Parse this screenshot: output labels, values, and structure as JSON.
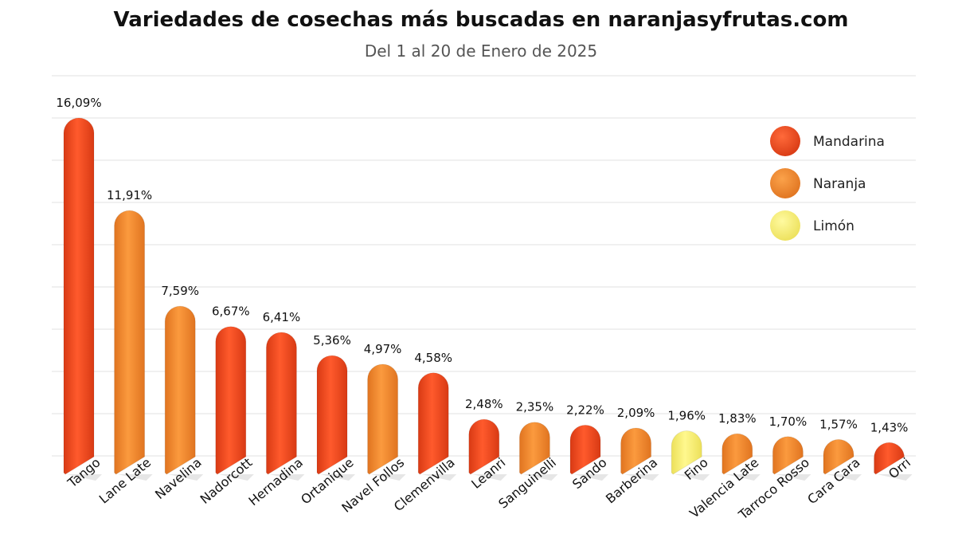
{
  "chart_data": {
    "type": "bar",
    "title": "Variedades de cosechas más buscadas en naranjasyfrutas.com",
    "subtitle": "Del 1 al 20 de Enero de 2025",
    "categories": [
      "Tango",
      "Lane Late",
      "Navelina",
      "Nadorcott",
      "Hernadina",
      "Ortanique",
      "Navel Follos",
      "Clemenvilla",
      "Leanri",
      "Sanguinelli",
      "Sando",
      "Barberina",
      "Fino",
      "Valencia Late",
      "Tarroco Rosso",
      "Cara Cara",
      "Orri"
    ],
    "values": [
      16.09,
      11.91,
      7.59,
      6.67,
      6.41,
      5.36,
      4.97,
      4.58,
      2.48,
      2.35,
      2.22,
      2.09,
      1.96,
      1.83,
      1.7,
      1.57,
      1.43
    ],
    "value_labels": [
      "16,09%",
      "11,91%",
      "7,59%",
      "6,67%",
      "6,41%",
      "5,36%",
      "4,97%",
      "4,58%",
      "2,48%",
      "2,35%",
      "2,22%",
      "2,09%",
      "1,96%",
      "1,83%",
      "1,70%",
      "1,57%",
      "1,43%"
    ],
    "types": [
      "Mandarina",
      "Naranja",
      "Naranja",
      "Mandarina",
      "Mandarina",
      "Mandarina",
      "Naranja",
      "Mandarina",
      "Mandarina",
      "Naranja",
      "Mandarina",
      "Naranja",
      "Limón",
      "Naranja",
      "Naranja",
      "Naranja",
      "Mandarina"
    ],
    "legend": [
      {
        "name": "Mandarina",
        "color": "#f04e23"
      },
      {
        "name": "Naranja",
        "color": "#f58a2e"
      },
      {
        "name": "Limón",
        "color": "#f7f07a"
      }
    ],
    "ylim": [
      0,
      18
    ],
    "grid": true,
    "legend_position": "top-right"
  }
}
